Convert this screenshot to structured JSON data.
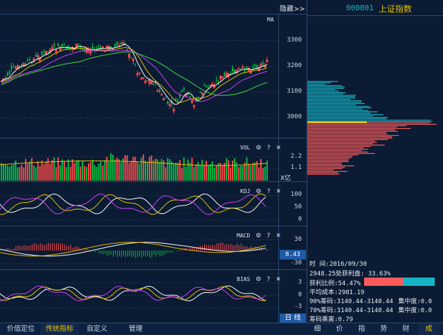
{
  "header": {
    "hide_label": "隐藏>>",
    "stock_code": "000001",
    "stock_name": "上证指数"
  },
  "main_chart": {
    "ma_label": "MA",
    "price_ticks": [
      "3300",
      "3200",
      "3100",
      "3000"
    ]
  },
  "vol_panel": {
    "label": "VOL",
    "ticks": [
      "2.2",
      "1.1"
    ],
    "unit": "X亿"
  },
  "kdj_panel": {
    "label": "KDJ",
    "ticks": [
      "100",
      "50",
      "0"
    ]
  },
  "macd_panel": {
    "label": "MACD",
    "ticks": [
      "30",
      "-30"
    ],
    "current_value": "8.43"
  },
  "bias_panel": {
    "label": "BIAS",
    "ticks": [
      "3",
      "0",
      "-3"
    ],
    "period": "日 线"
  },
  "indicator_icons": [
    "gear-icon",
    "help-icon",
    "close-icon"
  ],
  "icons": {
    "gear": "⚙",
    "help": "?",
    "close": "✕"
  },
  "chip_info": {
    "time_label": "时      间:2016/09/30",
    "profit_line": "2948.25处获利盘: 33.63%",
    "profit_ratio_label": "获利比例:54.47%",
    "profit_ratio": 0.5447,
    "avg_cost": "平均成本:2981.19",
    "chip90": "90%筹码:3140.44-3140.44",
    "chip90_conc": "集中度:0.0",
    "chip70": "70%筹码:3140.44-3140.44",
    "chip70_conc": "集中度:0.0",
    "chip_product": "筹码乘离:0.79"
  },
  "bottom_tabs": {
    "left": [
      "价值定位",
      "传统指标",
      "自定义",
      "管理"
    ],
    "right": [
      "细",
      "价",
      "指",
      "势",
      "财",
      "成"
    ]
  },
  "colors": {
    "up": "#ff4a4a",
    "down": "#00c040",
    "accent": "#e8c200",
    "bg": "#0b1b33",
    "cyan": "#16b4c4",
    "salmon": "#ff5a5a"
  }
}
